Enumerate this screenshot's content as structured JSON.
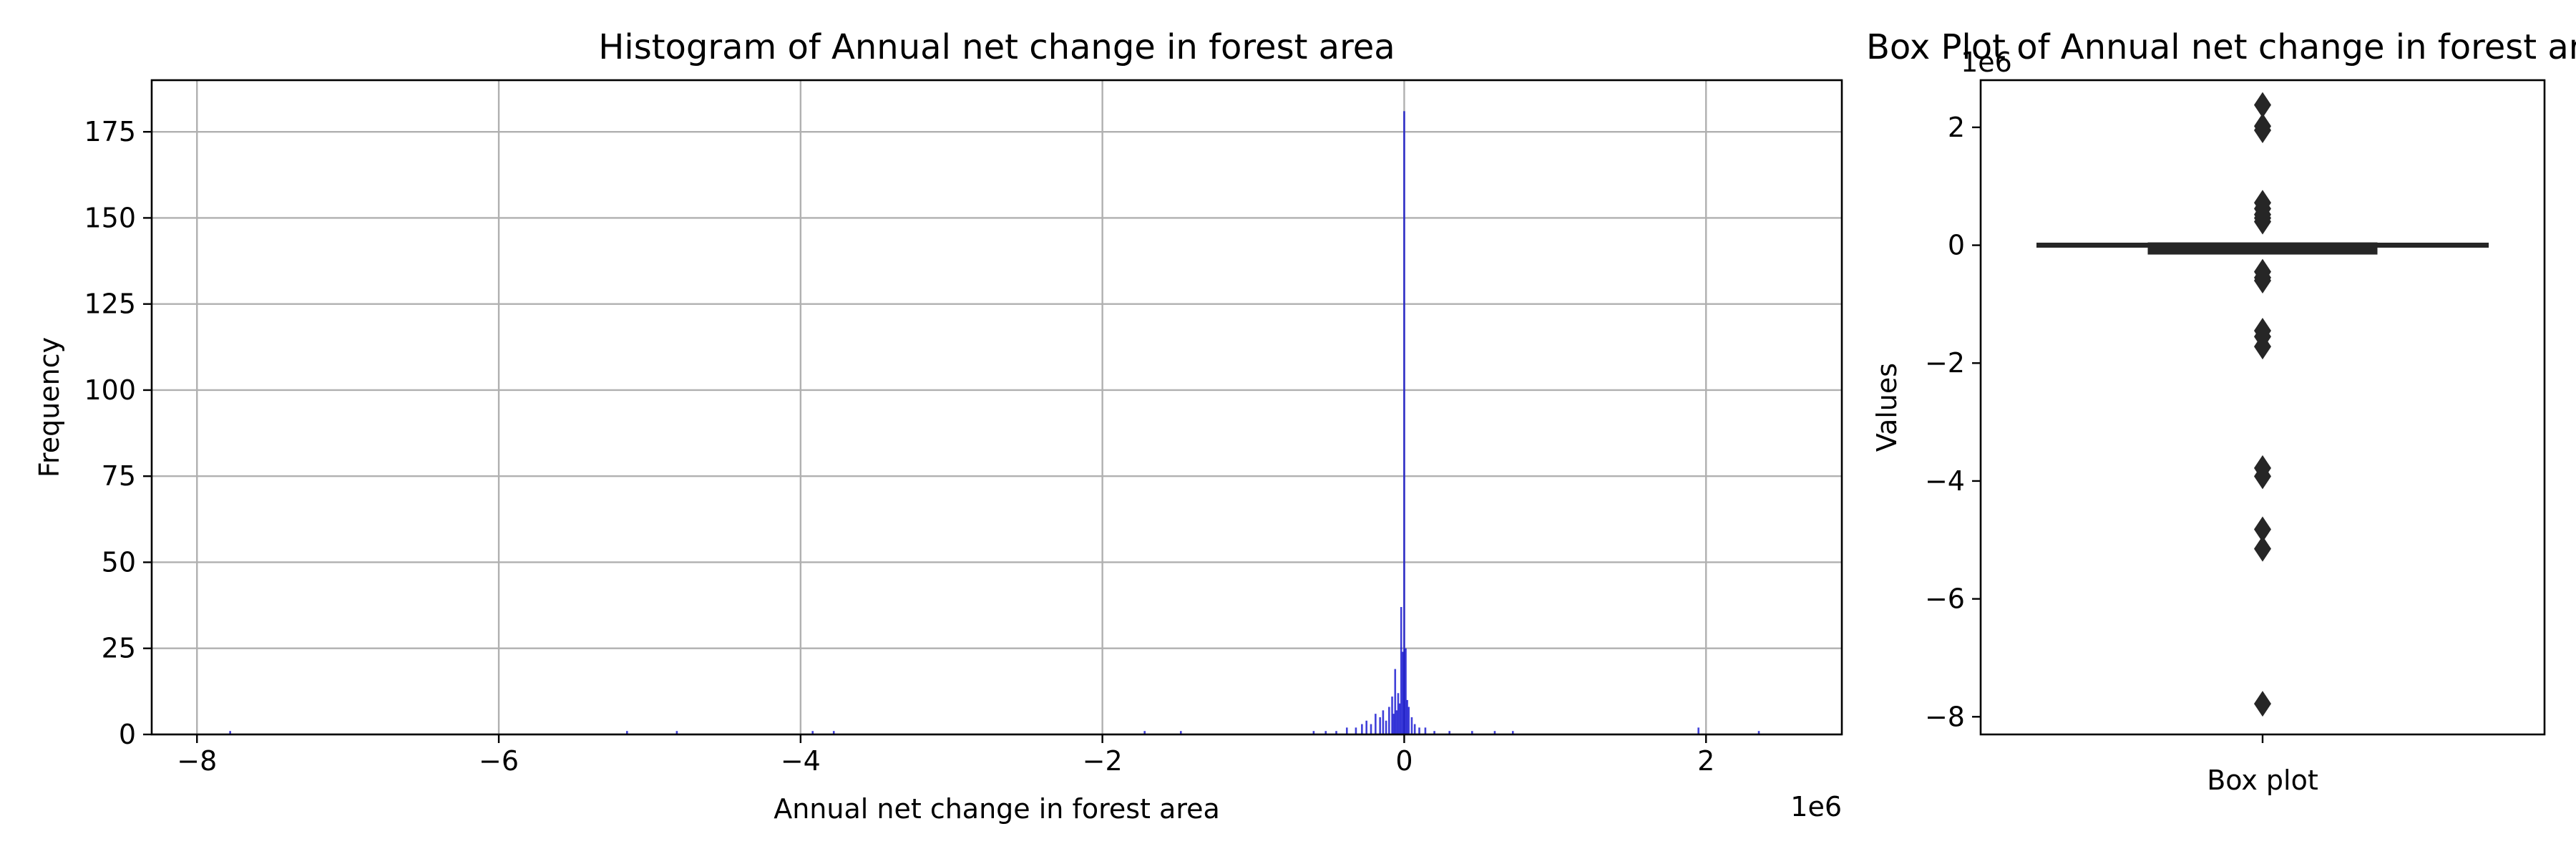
{
  "chart_data": [
    {
      "type": "bar",
      "title": "Histogram of Annual net change in forest area",
      "xlabel": "Annual net change in forest area",
      "ylabel": "Frequency",
      "x_offset_label": "1e6",
      "xlim": [
        -8.3,
        2.9
      ],
      "ylim": [
        0,
        190
      ],
      "x_ticks": [
        -8,
        -6,
        -4,
        -2,
        0,
        2
      ],
      "x_tick_labels": [
        "−8",
        "−6",
        "−4",
        "−2",
        "0",
        "2"
      ],
      "y_ticks": [
        0,
        25,
        50,
        75,
        100,
        125,
        150,
        175
      ],
      "y_tick_labels": [
        "0",
        "25",
        "50",
        "75",
        "100",
        "125",
        "150",
        "175"
      ],
      "grid": true,
      "bar_color": "#0000cc",
      "bins": [
        {
          "x": -7.78,
          "count": 1
        },
        {
          "x": -5.15,
          "count": 1
        },
        {
          "x": -4.82,
          "count": 1
        },
        {
          "x": -3.92,
          "count": 1
        },
        {
          "x": -3.78,
          "count": 1
        },
        {
          "x": -1.72,
          "count": 1
        },
        {
          "x": -1.48,
          "count": 1
        },
        {
          "x": -0.6,
          "count": 1
        },
        {
          "x": -0.52,
          "count": 1
        },
        {
          "x": -0.45,
          "count": 1
        },
        {
          "x": -0.38,
          "count": 2
        },
        {
          "x": -0.32,
          "count": 2
        },
        {
          "x": -0.28,
          "count": 3
        },
        {
          "x": -0.25,
          "count": 4
        },
        {
          "x": -0.22,
          "count": 3
        },
        {
          "x": -0.19,
          "count": 6
        },
        {
          "x": -0.16,
          "count": 5
        },
        {
          "x": -0.14,
          "count": 7
        },
        {
          "x": -0.12,
          "count": 4
        },
        {
          "x": -0.1,
          "count": 8
        },
        {
          "x": -0.08,
          "count": 11
        },
        {
          "x": -0.07,
          "count": 6
        },
        {
          "x": -0.06,
          "count": 19
        },
        {
          "x": -0.05,
          "count": 7
        },
        {
          "x": -0.04,
          "count": 12
        },
        {
          "x": -0.03,
          "count": 9
        },
        {
          "x": -0.02,
          "count": 37
        },
        {
          "x": -0.01,
          "count": 24
        },
        {
          "x": 0.0,
          "count": 181
        },
        {
          "x": 0.01,
          "count": 25
        },
        {
          "x": 0.02,
          "count": 10
        },
        {
          "x": 0.03,
          "count": 8
        },
        {
          "x": 0.05,
          "count": 5
        },
        {
          "x": 0.07,
          "count": 3
        },
        {
          "x": 0.1,
          "count": 2
        },
        {
          "x": 0.14,
          "count": 2
        },
        {
          "x": 0.2,
          "count": 1
        },
        {
          "x": 0.3,
          "count": 1
        },
        {
          "x": 0.45,
          "count": 1
        },
        {
          "x": 0.6,
          "count": 1
        },
        {
          "x": 0.72,
          "count": 1
        },
        {
          "x": 1.95,
          "count": 2
        },
        {
          "x": 2.35,
          "count": 1
        }
      ]
    },
    {
      "type": "box",
      "title": "Box Plot of Annual net change in forest area",
      "xlabel": "Box plot",
      "ylabel": "Values",
      "y_offset_label": "1e6",
      "ylim": [
        -8.3,
        2.8
      ],
      "y_ticks": [
        2,
        0,
        -2,
        -4,
        -6,
        -8
      ],
      "y_tick_labels": [
        "2",
        "0",
        "−2",
        "−4",
        "−6",
        "−8"
      ],
      "whisker_low": -0.35,
      "q1": -0.03,
      "median": 0.0,
      "q3": 0.03,
      "whisker_high": 0.35,
      "outliers": [
        2.38,
        2.02,
        1.95,
        0.72,
        0.62,
        0.52,
        0.46,
        0.4,
        -0.45,
        -0.55,
        -0.6,
        -1.45,
        -1.55,
        -1.72,
        -3.78,
        -3.92,
        -4.82,
        -5.15,
        -7.78
      ]
    }
  ]
}
